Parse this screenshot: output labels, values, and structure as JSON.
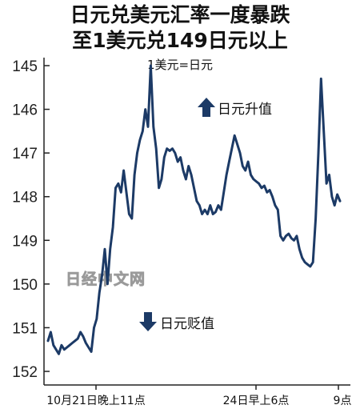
{
  "chart_data": {
    "type": "line",
    "title": "日元兑美元汇率一度暴跌",
    "subtitle": "至1美元兑149日元以上",
    "unit_note": "1美元=日元",
    "ylim": [
      145,
      152
    ],
    "y_inverted": true,
    "y_ticks": [
      "145",
      "146",
      "147",
      "148",
      "149",
      "150",
      "151",
      "152"
    ],
    "x_ticks": [
      "10月21日晚上11点",
      "24日早上6点",
      "9点"
    ],
    "annotations": {
      "up": "日元升值",
      "down": "日元贬值"
    },
    "watermark": "日经中文网",
    "line_color": "#1c3a66",
    "series": [
      {
        "values": [
          151.3,
          151.1,
          151.4,
          151.5,
          151.6,
          151.4,
          151.5,
          151.45,
          151.4,
          151.35,
          151.3,
          151.25,
          151.1,
          151.2,
          151.35,
          151.45,
          151.55,
          151.0,
          150.8,
          150.2,
          149.8,
          149.2,
          150.0,
          149.2,
          148.7,
          147.8,
          147.7,
          147.9,
          147.4,
          147.9,
          148.4,
          148.5,
          147.5,
          147.0,
          146.7,
          146.5,
          146.0,
          146.4,
          145.0,
          146.4,
          146.9,
          147.8,
          147.6,
          147.1,
          146.9,
          146.95,
          146.9,
          147.0,
          147.2,
          147.1,
          147.4,
          147.6,
          147.3,
          147.5,
          147.8,
          148.1,
          148.2,
          148.4,
          148.3,
          148.4,
          148.2,
          148.4,
          148.35,
          148.2,
          148.3,
          147.9,
          147.5,
          147.2,
          146.9,
          146.6,
          146.8,
          147.0,
          147.3,
          147.4,
          147.2,
          147.5,
          147.6,
          147.65,
          147.7,
          147.8,
          147.75,
          147.9,
          147.85,
          148.0,
          148.2,
          148.3,
          148.9,
          149.0,
          148.9,
          148.85,
          148.95,
          149.0,
          148.9,
          149.2,
          149.4,
          149.5,
          149.55,
          149.6,
          149.5,
          148.5,
          147.0,
          145.3,
          146.5,
          147.7,
          147.5,
          148.0,
          148.2,
          147.95,
          148.1
        ]
      }
    ]
  }
}
